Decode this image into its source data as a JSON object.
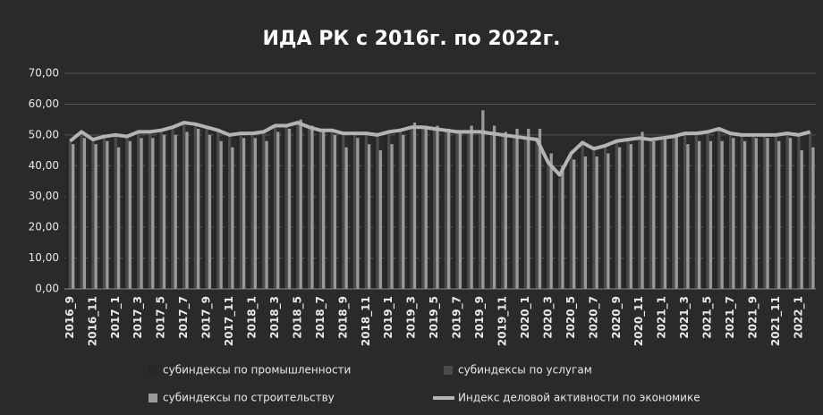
{
  "chart_data": {
    "type": "bar",
    "title": "ИДА РК с 2016г. по 2022г.",
    "categories": [
      "2016_9",
      null,
      "2016_11",
      null,
      "2017_1",
      null,
      "2017_3",
      null,
      "2017_5",
      null,
      "2017_7",
      null,
      "2017_9",
      null,
      "2017_11",
      null,
      "2018_1",
      null,
      "2018_3",
      null,
      "2018_5",
      null,
      "2018_7",
      null,
      "2018_9",
      null,
      "2018_11",
      null,
      "2019_1",
      null,
      "2019_3",
      null,
      "2019_5",
      null,
      "2019_7",
      null,
      "2019_9",
      null,
      "2019_11",
      null,
      "2020_1",
      null,
      "2020_3",
      null,
      "2020_5",
      null,
      "2020_7",
      null,
      "2020_9",
      null,
      "2020_11",
      null,
      "2021_1",
      null,
      "2021_3",
      null,
      "2021_5",
      null,
      "2021_7",
      null,
      "2021_9",
      null,
      "2021_11",
      null,
      "2022_1",
      null
    ],
    "series": [
      {
        "name": "субиндексы по  промышленности",
        "color": "#262626",
        "values": [
          47,
          50,
          48,
          49,
          49,
          49,
          50,
          50,
          51,
          52,
          53,
          53,
          52,
          51,
          49,
          50,
          50,
          50,
          52,
          52,
          53,
          52,
          51,
          51,
          50,
          50,
          50,
          49,
          50,
          51,
          52,
          52,
          51,
          51,
          50,
          50,
          50,
          50,
          49,
          49,
          49,
          48,
          42,
          38,
          44,
          47,
          45,
          46,
          47,
          48,
          48,
          48,
          48,
          49,
          50,
          50,
          50,
          51,
          50,
          49,
          49,
          49,
          49,
          50,
          49,
          50
        ]
      },
      {
        "name": "субиндексы по  услугам",
        "color": "#4a4a4a",
        "values": [
          48,
          51,
          49,
          50,
          50,
          50,
          51,
          51,
          52,
          53,
          54,
          53,
          53,
          52,
          50,
          51,
          51,
          51,
          53,
          53,
          54,
          53,
          52,
          52,
          51,
          51,
          51,
          50,
          51,
          52,
          53,
          53,
          52,
          52,
          51,
          51,
          51,
          51,
          50,
          50,
          49,
          49,
          40,
          36,
          44,
          48,
          46,
          47,
          48,
          49,
          49,
          49,
          49,
          50,
          51,
          51,
          51,
          52,
          51,
          50,
          50,
          50,
          50,
          51,
          50,
          51
        ]
      },
      {
        "name": "субиндексы по  строительству",
        "color": "#9a9a9a",
        "values": [
          47,
          49,
          47,
          48,
          46,
          48,
          49,
          49,
          50,
          50,
          51,
          52,
          50,
          48,
          46,
          49,
          49,
          48,
          51,
          52,
          55,
          53,
          51,
          50,
          46,
          49,
          47,
          45,
          47,
          50,
          54,
          53,
          53,
          52,
          51,
          53,
          58,
          53,
          51,
          52,
          52,
          52,
          44,
          40,
          42,
          43,
          43,
          44,
          46,
          47,
          51,
          48,
          49,
          50,
          47,
          48,
          48,
          48,
          49,
          48,
          49,
          49,
          48,
          49,
          45,
          46
        ]
      },
      {
        "name": "Индекс деловой активности по экономике",
        "color": "#b4b4b4",
        "type": "line",
        "values": [
          48,
          51,
          48.5,
          49.5,
          50,
          49.5,
          51,
          51,
          51.5,
          52.5,
          54,
          53.5,
          52.5,
          51.5,
          50,
          50.5,
          50.5,
          51,
          53,
          53,
          54,
          52.5,
          51.5,
          51.5,
          50.5,
          50.5,
          50.5,
          50,
          51,
          51.5,
          52.5,
          52.5,
          52,
          51.5,
          51,
          51,
          51,
          50.5,
          50,
          49.5,
          49,
          48.5,
          41,
          37,
          44,
          47.5,
          45.5,
          46.5,
          48,
          48.5,
          49,
          48.5,
          49,
          49.5,
          50.5,
          50.5,
          51,
          52,
          50.5,
          50,
          50,
          50,
          50,
          50.5,
          50,
          51
        ]
      }
    ],
    "ylim": [
      0,
      70
    ],
    "yticks": [
      {
        "value": 0,
        "label": "0,00"
      },
      {
        "value": 10,
        "label": "10,00"
      },
      {
        "value": 20,
        "label": "20,00"
      },
      {
        "value": 30,
        "label": "30,00"
      },
      {
        "value": 40,
        "label": "40,00"
      },
      {
        "value": 50,
        "label": "50,00"
      },
      {
        "value": 60,
        "label": "60,00"
      },
      {
        "value": 70,
        "label": "70,00"
      }
    ],
    "grid": true
  }
}
